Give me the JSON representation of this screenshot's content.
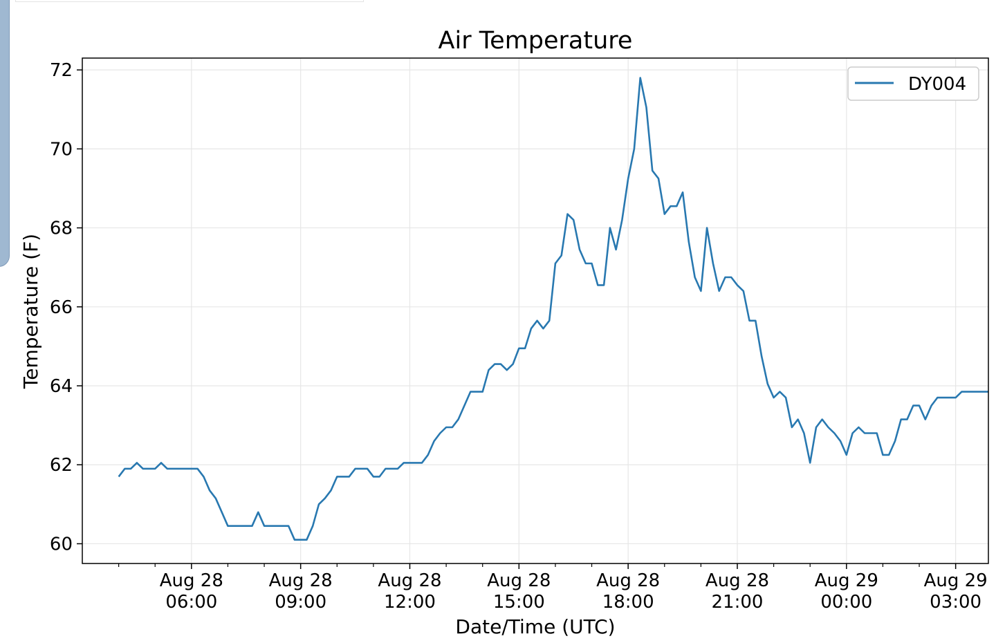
{
  "chart_data": {
    "type": "line",
    "title": "Air Temperature",
    "xlabel": "Date/Time (UTC)",
    "ylabel": "Temperature (F)",
    "ylim": [
      59.5,
      72.3
    ],
    "yticks": [
      60,
      62,
      64,
      66,
      68,
      70,
      72
    ],
    "xlim_hours_from_first_tick_day": [
      3.0,
      27.9
    ],
    "xticks": [
      {
        "line1": "Aug 28",
        "line2": "06:00"
      },
      {
        "line1": "Aug 28",
        "line2": "09:00"
      },
      {
        "line1": "Aug 28",
        "line2": "12:00"
      },
      {
        "line1": "Aug 28",
        "line2": "15:00"
      },
      {
        "line1": "Aug 28",
        "line2": "18:00"
      },
      {
        "line1": "Aug 28",
        "line2": "21:00"
      },
      {
        "line1": "Aug 29",
        "line2": "00:00"
      },
      {
        "line1": "Aug 29",
        "line2": "03:00"
      }
    ],
    "grid": true,
    "legend_position": "top-right",
    "color": "#2878b0",
    "series": [
      {
        "name": "DY004",
        "points": [
          [
            "Aug 28 04:00",
            61.7
          ],
          [
            "Aug 28 04:10",
            61.9
          ],
          [
            "Aug 28 04:20",
            61.9
          ],
          [
            "Aug 28 04:30",
            62.05
          ],
          [
            "Aug 28 04:40",
            61.9
          ],
          [
            "Aug 28 04:50",
            61.9
          ],
          [
            "Aug 28 05:00",
            61.9
          ],
          [
            "Aug 28 05:10",
            62.05
          ],
          [
            "Aug 28 05:20",
            61.9
          ],
          [
            "Aug 28 05:30",
            61.9
          ],
          [
            "Aug 28 05:40",
            61.9
          ],
          [
            "Aug 28 05:50",
            61.9
          ],
          [
            "Aug 28 06:00",
            61.9
          ],
          [
            "Aug 28 06:10",
            61.9
          ],
          [
            "Aug 28 06:20",
            61.7
          ],
          [
            "Aug 28 06:30",
            61.35
          ],
          [
            "Aug 28 06:40",
            61.15
          ],
          [
            "Aug 28 06:50",
            60.8
          ],
          [
            "Aug 28 07:00",
            60.45
          ],
          [
            "Aug 28 07:10",
            60.45
          ],
          [
            "Aug 28 07:20",
            60.45
          ],
          [
            "Aug 28 07:30",
            60.45
          ],
          [
            "Aug 28 07:40",
            60.45
          ],
          [
            "Aug 28 07:50",
            60.8
          ],
          [
            "Aug 28 08:00",
            60.45
          ],
          [
            "Aug 28 08:10",
            60.45
          ],
          [
            "Aug 28 08:20",
            60.45
          ],
          [
            "Aug 28 08:30",
            60.45
          ],
          [
            "Aug 28 08:40",
            60.45
          ],
          [
            "Aug 28 08:50",
            60.1
          ],
          [
            "Aug 28 09:00",
            60.1
          ],
          [
            "Aug 28 09:10",
            60.1
          ],
          [
            "Aug 28 09:20",
            60.45
          ],
          [
            "Aug 28 09:30",
            61.0
          ],
          [
            "Aug 28 09:40",
            61.15
          ],
          [
            "Aug 28 09:50",
            61.35
          ],
          [
            "Aug 28 10:00",
            61.7
          ],
          [
            "Aug 28 10:10",
            61.7
          ],
          [
            "Aug 28 10:20",
            61.7
          ],
          [
            "Aug 28 10:30",
            61.9
          ],
          [
            "Aug 28 10:40",
            61.9
          ],
          [
            "Aug 28 10:50",
            61.9
          ],
          [
            "Aug 28 11:00",
            61.7
          ],
          [
            "Aug 28 11:10",
            61.7
          ],
          [
            "Aug 28 11:20",
            61.9
          ],
          [
            "Aug 28 11:30",
            61.9
          ],
          [
            "Aug 28 11:40",
            61.9
          ],
          [
            "Aug 28 11:50",
            62.05
          ],
          [
            "Aug 28 12:00",
            62.05
          ],
          [
            "Aug 28 12:10",
            62.05
          ],
          [
            "Aug 28 12:20",
            62.05
          ],
          [
            "Aug 28 12:30",
            62.25
          ],
          [
            "Aug 28 12:40",
            62.6
          ],
          [
            "Aug 28 12:50",
            62.8
          ],
          [
            "Aug 28 13:00",
            62.95
          ],
          [
            "Aug 28 13:10",
            62.95
          ],
          [
            "Aug 28 13:20",
            63.15
          ],
          [
            "Aug 28 13:30",
            63.5
          ],
          [
            "Aug 28 13:40",
            63.85
          ],
          [
            "Aug 28 13:50",
            63.85
          ],
          [
            "Aug 28 14:00",
            63.85
          ],
          [
            "Aug 28 14:10",
            64.4
          ],
          [
            "Aug 28 14:20",
            64.55
          ],
          [
            "Aug 28 14:30",
            64.55
          ],
          [
            "Aug 28 14:40",
            64.4
          ],
          [
            "Aug 28 14:50",
            64.55
          ],
          [
            "Aug 28 15:00",
            64.95
          ],
          [
            "Aug 28 15:10",
            64.95
          ],
          [
            "Aug 28 15:20",
            65.45
          ],
          [
            "Aug 28 15:30",
            65.65
          ],
          [
            "Aug 28 15:40",
            65.45
          ],
          [
            "Aug 28 15:50",
            65.65
          ],
          [
            "Aug 28 16:00",
            67.1
          ],
          [
            "Aug 28 16:10",
            67.3
          ],
          [
            "Aug 28 16:20",
            68.35
          ],
          [
            "Aug 28 16:30",
            68.2
          ],
          [
            "Aug 28 16:40",
            67.45
          ],
          [
            "Aug 28 16:50",
            67.1
          ],
          [
            "Aug 28 17:00",
            67.1
          ],
          [
            "Aug 28 17:10",
            66.55
          ],
          [
            "Aug 28 17:20",
            66.55
          ],
          [
            "Aug 28 17:30",
            68.0
          ],
          [
            "Aug 28 17:40",
            67.45
          ],
          [
            "Aug 28 17:50",
            68.2
          ],
          [
            "Aug 28 18:00",
            69.25
          ],
          [
            "Aug 28 18:10",
            70.0
          ],
          [
            "Aug 28 18:20",
            71.8
          ],
          [
            "Aug 28 18:30",
            71.05
          ],
          [
            "Aug 28 18:40",
            69.45
          ],
          [
            "Aug 28 18:50",
            69.25
          ],
          [
            "Aug 28 19:00",
            68.35
          ],
          [
            "Aug 28 19:10",
            68.55
          ],
          [
            "Aug 28 19:20",
            68.55
          ],
          [
            "Aug 28 19:30",
            68.9
          ],
          [
            "Aug 28 19:40",
            67.65
          ],
          [
            "Aug 28 19:50",
            66.75
          ],
          [
            "Aug 28 20:00",
            66.4
          ],
          [
            "Aug 28 20:10",
            68.0
          ],
          [
            "Aug 28 20:20",
            67.1
          ],
          [
            "Aug 28 20:30",
            66.4
          ],
          [
            "Aug 28 20:40",
            66.75
          ],
          [
            "Aug 28 20:50",
            66.75
          ],
          [
            "Aug 28 21:00",
            66.55
          ],
          [
            "Aug 28 21:10",
            66.4
          ],
          [
            "Aug 28 21:20",
            65.65
          ],
          [
            "Aug 28 21:30",
            65.65
          ],
          [
            "Aug 28 21:40",
            64.75
          ],
          [
            "Aug 28 21:50",
            64.05
          ],
          [
            "Aug 28 22:00",
            63.7
          ],
          [
            "Aug 28 22:10",
            63.85
          ],
          [
            "Aug 28 22:20",
            63.7
          ],
          [
            "Aug 28 22:30",
            62.95
          ],
          [
            "Aug 28 22:40",
            63.15
          ],
          [
            "Aug 28 22:50",
            62.8
          ],
          [
            "Aug 28 23:00",
            62.05
          ],
          [
            "Aug 28 23:10",
            62.95
          ],
          [
            "Aug 28 23:20",
            63.15
          ],
          [
            "Aug 28 23:30",
            62.95
          ],
          [
            "Aug 28 23:40",
            62.8
          ],
          [
            "Aug 28 23:50",
            62.6
          ],
          [
            "Aug 29 00:00",
            62.25
          ],
          [
            "Aug 29 00:10",
            62.8
          ],
          [
            "Aug 29 00:20",
            62.95
          ],
          [
            "Aug 29 00:30",
            62.8
          ],
          [
            "Aug 29 00:40",
            62.8
          ],
          [
            "Aug 29 00:50",
            62.8
          ],
          [
            "Aug 29 01:00",
            62.25
          ],
          [
            "Aug 29 01:10",
            62.25
          ],
          [
            "Aug 29 01:20",
            62.6
          ],
          [
            "Aug 29 01:30",
            63.15
          ],
          [
            "Aug 29 01:40",
            63.15
          ],
          [
            "Aug 29 01:50",
            63.5
          ],
          [
            "Aug 29 02:00",
            63.5
          ],
          [
            "Aug 29 02:10",
            63.15
          ],
          [
            "Aug 29 02:20",
            63.5
          ],
          [
            "Aug 29 02:30",
            63.7
          ],
          [
            "Aug 29 02:40",
            63.7
          ],
          [
            "Aug 29 02:50",
            63.7
          ],
          [
            "Aug 29 03:00",
            63.7
          ],
          [
            "Aug 29 03:10",
            63.85
          ],
          [
            "Aug 29 03:20",
            63.85
          ],
          [
            "Aug 29 03:30",
            63.85
          ],
          [
            "Aug 29 03:40",
            63.85
          ],
          [
            "Aug 29 03:50",
            63.85
          ]
        ]
      }
    ]
  }
}
